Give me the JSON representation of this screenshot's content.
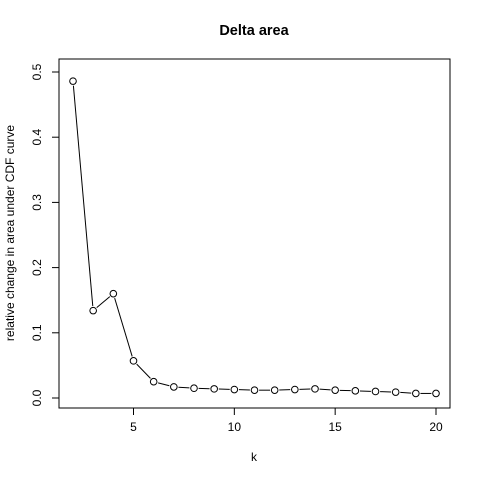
{
  "chart_data": {
    "type": "line",
    "title": "Delta area",
    "xlabel": "k",
    "ylabel": "relative change in area under CDF curve",
    "xlim": [
      2,
      20
    ],
    "ylim": [
      0,
      0.5
    ],
    "xticks": [
      5,
      10,
      15,
      20
    ],
    "xtick_labels": [
      "5",
      "10",
      "15",
      "20"
    ],
    "yticks": [
      0.0,
      0.1,
      0.2,
      0.3,
      0.4,
      0.5
    ],
    "ytick_labels": [
      "0.0",
      "0.1",
      "0.2",
      "0.3",
      "0.4",
      "0.5"
    ],
    "grid": false,
    "markers": "open-circle",
    "x": [
      2,
      3,
      4,
      5,
      6,
      7,
      8,
      9,
      10,
      11,
      12,
      13,
      14,
      15,
      16,
      17,
      18,
      19,
      20
    ],
    "y": [
      0.486,
      0.134,
      0.16,
      0.057,
      0.025,
      0.017,
      0.015,
      0.014,
      0.013,
      0.012,
      0.012,
      0.013,
      0.014,
      0.012,
      0.011,
      0.01,
      0.009,
      0.007,
      0.007
    ]
  }
}
